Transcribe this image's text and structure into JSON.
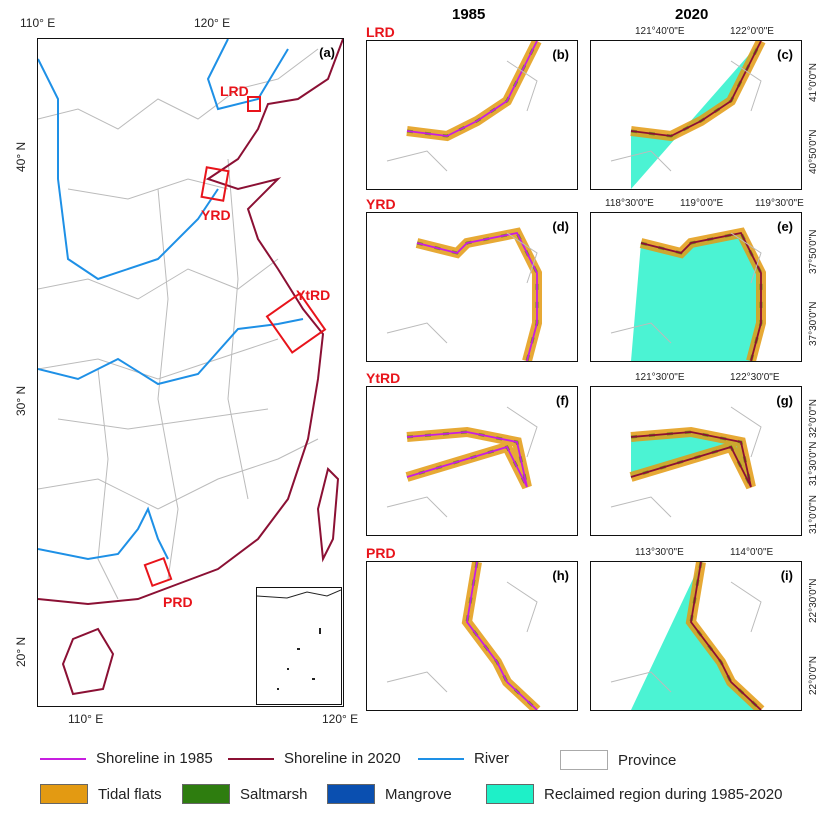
{
  "main_map": {
    "label": "(a)",
    "top_ticks": [
      "110° E",
      "120° E"
    ],
    "bottom_ticks": [
      "110° E",
      "120° E"
    ],
    "left_ticks": [
      "40° N",
      "30° N",
      "20° N"
    ],
    "regions": [
      "LRD",
      "YRD",
      "YtRD",
      "PRD"
    ]
  },
  "columns": [
    "1985",
    "2020"
  ],
  "rows": [
    {
      "region": "LRD",
      "panels": [
        "(b)",
        "(c)"
      ],
      "x_ticks": [
        "121°40'0\"E",
        "122°0'0\"E"
      ],
      "y_ticks": [
        "41°0'0\"N",
        "40°50'0\"N"
      ]
    },
    {
      "region": "YRD",
      "panels": [
        "(d)",
        "(e)"
      ],
      "x_ticks": [
        "118°30'0\"E",
        "119°0'0\"E",
        "119°30'0\"E"
      ],
      "y_ticks": [
        "37°50'0\"N",
        "37°30'0\"N"
      ]
    },
    {
      "region": "YtRD",
      "panels": [
        "(f)",
        "(g)"
      ],
      "x_ticks": [
        "121°30'0\"E",
        "122°30'0\"E"
      ],
      "y_ticks": [
        "32°0'0\"N",
        "31°30'0\"N",
        "31°0'0\"N"
      ]
    },
    {
      "region": "PRD",
      "panels": [
        "(h)",
        "(i)"
      ],
      "x_ticks": [
        "113°30'0\"E",
        "114°0'0\"E"
      ],
      "y_ticks": [
        "22°30'0\"N",
        "22°0'0\"N"
      ]
    }
  ],
  "legend": [
    {
      "label": "Shoreline in 1985",
      "type": "line",
      "color": "#c71ee0"
    },
    {
      "label": "Shoreline in 2020",
      "type": "line",
      "color": "#8b1034"
    },
    {
      "label": "River",
      "type": "line",
      "color": "#1e90e6"
    },
    {
      "label": "Province",
      "type": "box",
      "color": "#ffffff"
    },
    {
      "label": "Tidal flats",
      "type": "box",
      "color": "#e39a12"
    },
    {
      "label": "Saltmarsh",
      "type": "box",
      "color": "#2e7d0f"
    },
    {
      "label": "Mangrove",
      "type": "box",
      "color": "#0a4fb0"
    },
    {
      "label": "Reclaimed region during 1985-2020",
      "type": "box",
      "color": "#1ef0c8"
    }
  ]
}
